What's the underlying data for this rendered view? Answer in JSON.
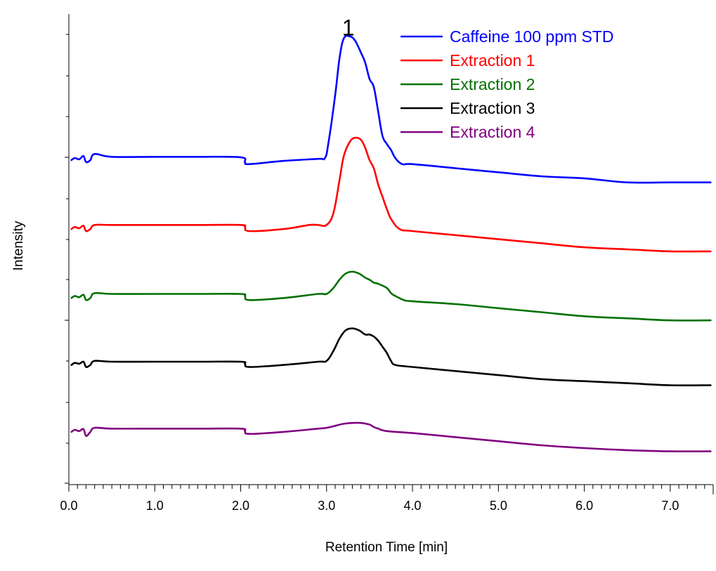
{
  "chart_data": {
    "type": "line",
    "title": "",
    "xlabel": "Retention Time [min]",
    "ylabel": "Intensity",
    "xlim": [
      0.0,
      7.5
    ],
    "ylim": [
      -0.1,
      11.5
    ],
    "x_ticks": [
      "0.0",
      "1.0",
      "2.0",
      "3.0",
      "4.0",
      "5.0",
      "6.0",
      "7.0"
    ],
    "x_tick_values": [
      0,
      1,
      2,
      3,
      4,
      5,
      6,
      7
    ],
    "legend_position": "top-right",
    "grid": false,
    "annotations": [
      {
        "text": "1",
        "x": 3.35,
        "y": 11.2
      }
    ],
    "series": [
      {
        "name": "Caffeine 100 ppm STD",
        "color": "#0000ff",
        "x": [
          0.03,
          0.07,
          0.12,
          0.17,
          0.2,
          0.25,
          0.3,
          0.5,
          1.0,
          1.5,
          2.0,
          2.05,
          2.1,
          2.5,
          2.9,
          2.98,
          3.02,
          3.1,
          3.15,
          3.2,
          3.27,
          3.33,
          3.4,
          3.45,
          3.5,
          3.55,
          3.6,
          3.65,
          3.7,
          3.75,
          3.8,
          3.88,
          4.0,
          4.5,
          5.0,
          5.5,
          6.0,
          6.5,
          7.0,
          7.47
        ],
        "y": [
          7.9,
          7.95,
          7.92,
          8.0,
          7.85,
          7.9,
          8.05,
          7.98,
          7.98,
          7.98,
          7.97,
          7.85,
          7.8,
          7.88,
          7.93,
          7.95,
          8.3,
          9.5,
          10.4,
          10.9,
          10.95,
          10.85,
          10.55,
          10.3,
          9.9,
          9.7,
          9.1,
          8.5,
          8.3,
          8.15,
          7.95,
          7.8,
          7.8,
          7.7,
          7.6,
          7.5,
          7.45,
          7.35,
          7.35,
          7.35
        ]
      },
      {
        "name": "Extraction 1",
        "color": "#ff0000",
        "x": [
          0.03,
          0.07,
          0.12,
          0.17,
          0.2,
          0.25,
          0.3,
          0.5,
          1.0,
          1.5,
          2.0,
          2.05,
          2.1,
          2.5,
          2.8,
          2.9,
          3.0,
          3.08,
          3.15,
          3.2,
          3.27,
          3.33,
          3.4,
          3.45,
          3.5,
          3.55,
          3.6,
          3.65,
          3.7,
          3.75,
          3.85,
          4.0,
          4.5,
          5.0,
          5.5,
          6.0,
          6.5,
          7.0,
          7.47
        ],
        "y": [
          6.2,
          6.25,
          6.22,
          6.28,
          6.15,
          6.2,
          6.3,
          6.3,
          6.3,
          6.3,
          6.3,
          6.25,
          6.15,
          6.2,
          6.3,
          6.3,
          6.3,
          6.6,
          7.4,
          8.0,
          8.35,
          8.45,
          8.4,
          8.2,
          7.9,
          7.7,
          7.3,
          7.0,
          6.7,
          6.45,
          6.2,
          6.15,
          6.05,
          5.95,
          5.85,
          5.75,
          5.7,
          5.65,
          5.65
        ]
      },
      {
        "name": "Extraction 2",
        "color": "#007000",
        "x": [
          0.03,
          0.07,
          0.12,
          0.17,
          0.2,
          0.25,
          0.3,
          0.5,
          1.0,
          1.5,
          2.0,
          2.05,
          2.1,
          2.5,
          2.9,
          3.0,
          3.08,
          3.15,
          3.22,
          3.3,
          3.38,
          3.45,
          3.5,
          3.55,
          3.6,
          3.7,
          3.75,
          3.8,
          3.9,
          4.0,
          4.5,
          5.0,
          5.5,
          6.0,
          6.5,
          7.0,
          7.47
        ],
        "y": [
          4.5,
          4.55,
          4.52,
          4.58,
          4.45,
          4.5,
          4.62,
          4.6,
          4.6,
          4.6,
          4.6,
          4.55,
          4.45,
          4.5,
          4.6,
          4.6,
          4.75,
          4.95,
          5.1,
          5.15,
          5.1,
          5.0,
          4.95,
          4.88,
          4.85,
          4.75,
          4.62,
          4.55,
          4.45,
          4.42,
          4.35,
          4.25,
          4.15,
          4.05,
          4.0,
          3.95,
          3.95
        ]
      },
      {
        "name": "Extraction 3",
        "color": "#000000",
        "x": [
          0.03,
          0.07,
          0.12,
          0.17,
          0.2,
          0.25,
          0.3,
          0.5,
          1.0,
          1.5,
          2.0,
          2.05,
          2.1,
          2.5,
          2.9,
          3.0,
          3.08,
          3.15,
          3.22,
          3.3,
          3.38,
          3.45,
          3.5,
          3.55,
          3.6,
          3.65,
          3.7,
          3.75,
          3.8,
          4.0,
          4.5,
          5.0,
          5.5,
          6.0,
          6.5,
          7.0,
          7.47
        ],
        "y": [
          2.85,
          2.9,
          2.88,
          2.93,
          2.8,
          2.85,
          2.95,
          2.93,
          2.93,
          2.93,
          2.93,
          2.88,
          2.8,
          2.85,
          2.93,
          2.95,
          3.2,
          3.5,
          3.7,
          3.75,
          3.7,
          3.6,
          3.6,
          3.55,
          3.45,
          3.3,
          3.15,
          2.95,
          2.85,
          2.8,
          2.7,
          2.6,
          2.5,
          2.45,
          2.4,
          2.35,
          2.35
        ]
      },
      {
        "name": "Extraction 4",
        "color": "#800080",
        "x": [
          0.03,
          0.07,
          0.12,
          0.17,
          0.2,
          0.25,
          0.3,
          0.5,
          1.0,
          1.5,
          2.0,
          2.05,
          2.1,
          2.5,
          2.9,
          3.0,
          3.1,
          3.2,
          3.3,
          3.4,
          3.5,
          3.55,
          3.6,
          3.7,
          4.0,
          4.5,
          5.0,
          5.5,
          6.0,
          6.5,
          7.0,
          7.47
        ],
        "y": [
          1.2,
          1.25,
          1.22,
          1.27,
          1.1,
          1.2,
          1.3,
          1.28,
          1.28,
          1.28,
          1.28,
          1.22,
          1.15,
          1.2,
          1.28,
          1.3,
          1.35,
          1.4,
          1.42,
          1.42,
          1.38,
          1.32,
          1.28,
          1.22,
          1.17,
          1.07,
          0.97,
          0.87,
          0.8,
          0.75,
          0.72,
          0.72
        ]
      }
    ]
  }
}
